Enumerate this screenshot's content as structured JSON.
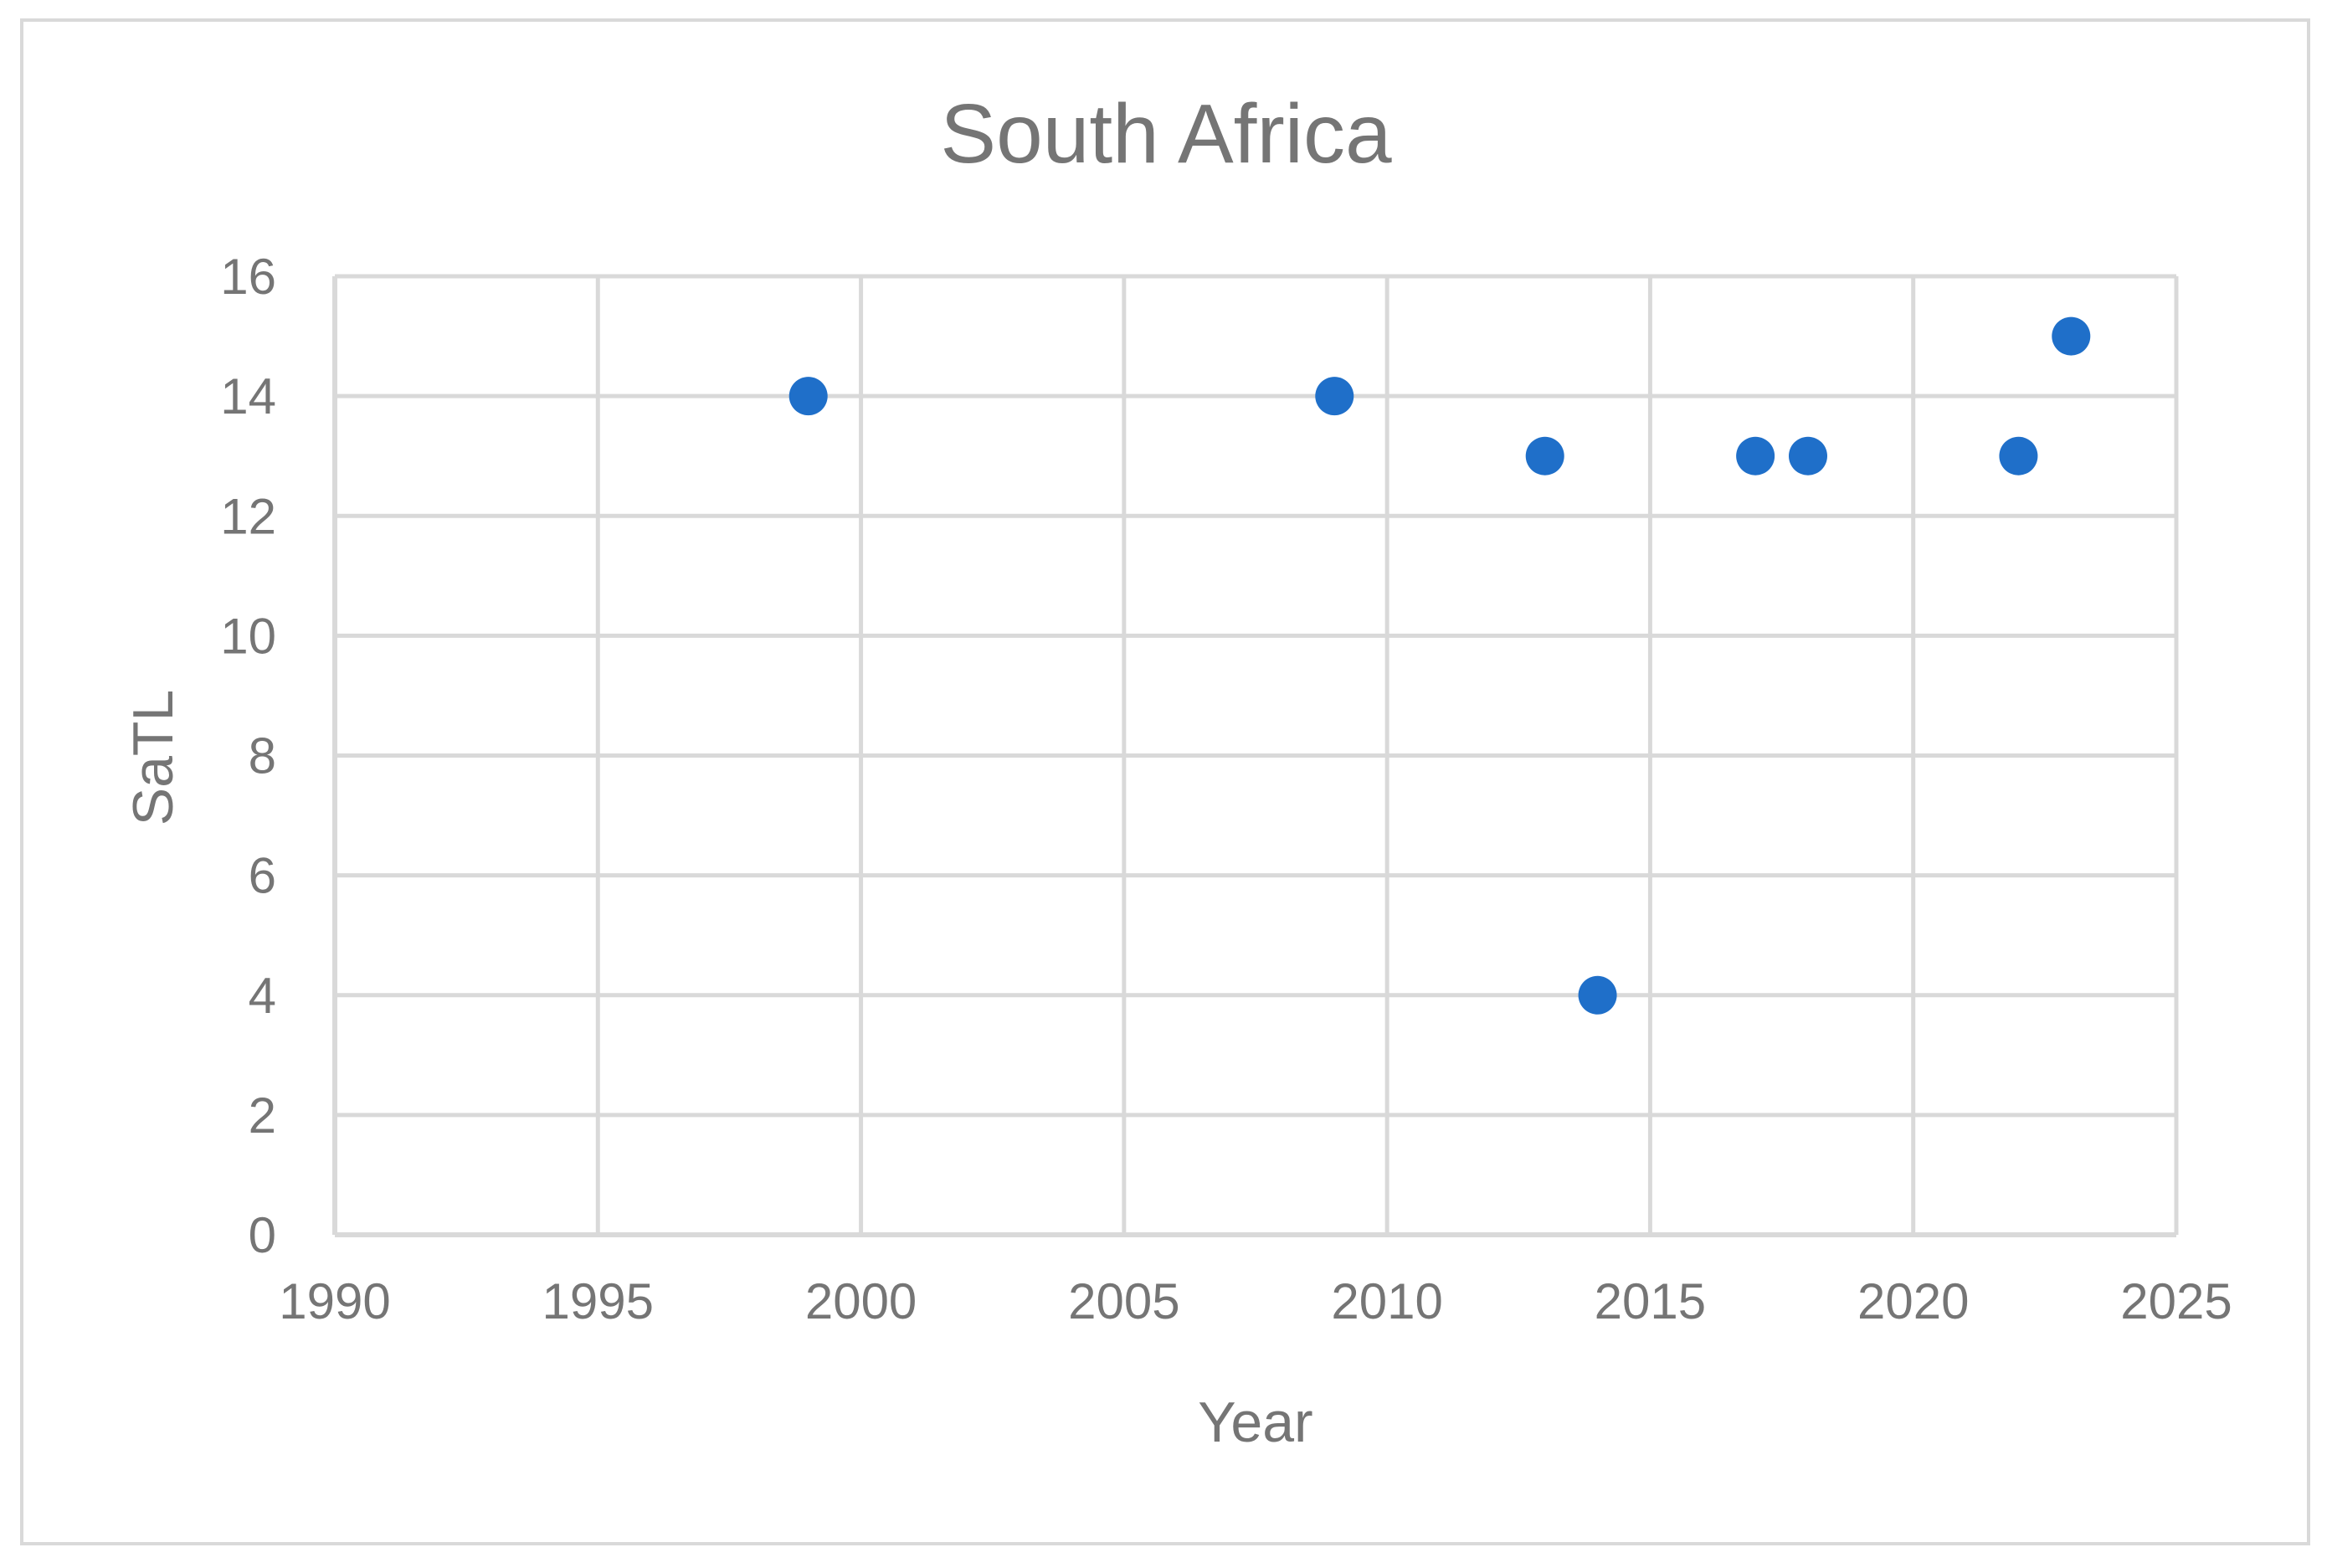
{
  "chart_data": {
    "type": "scatter",
    "title": "South Africa",
    "xlabel": "Year",
    "ylabel": "SaTL",
    "xlim": [
      1990,
      2025
    ],
    "ylim": [
      0,
      16
    ],
    "x_ticks": [
      1990,
      1995,
      2000,
      2005,
      2010,
      2015,
      2020,
      2025
    ],
    "y_ticks": [
      0,
      2,
      4,
      6,
      8,
      10,
      12,
      14,
      16
    ],
    "grid": true,
    "legend": "none",
    "series": [
      {
        "color": "#1f6fc9",
        "points": [
          {
            "x": 1999,
            "y": 14
          },
          {
            "x": 2009,
            "y": 14
          },
          {
            "x": 2013,
            "y": 13
          },
          {
            "x": 2014,
            "y": 4
          },
          {
            "x": 2017,
            "y": 13
          },
          {
            "x": 2018,
            "y": 13
          },
          {
            "x": 2022,
            "y": 13
          },
          {
            "x": 2023,
            "y": 15
          }
        ]
      }
    ],
    "colors": {
      "grid": "#d9d9d9",
      "text": "#757575",
      "marker": "#1f6fc9"
    }
  }
}
